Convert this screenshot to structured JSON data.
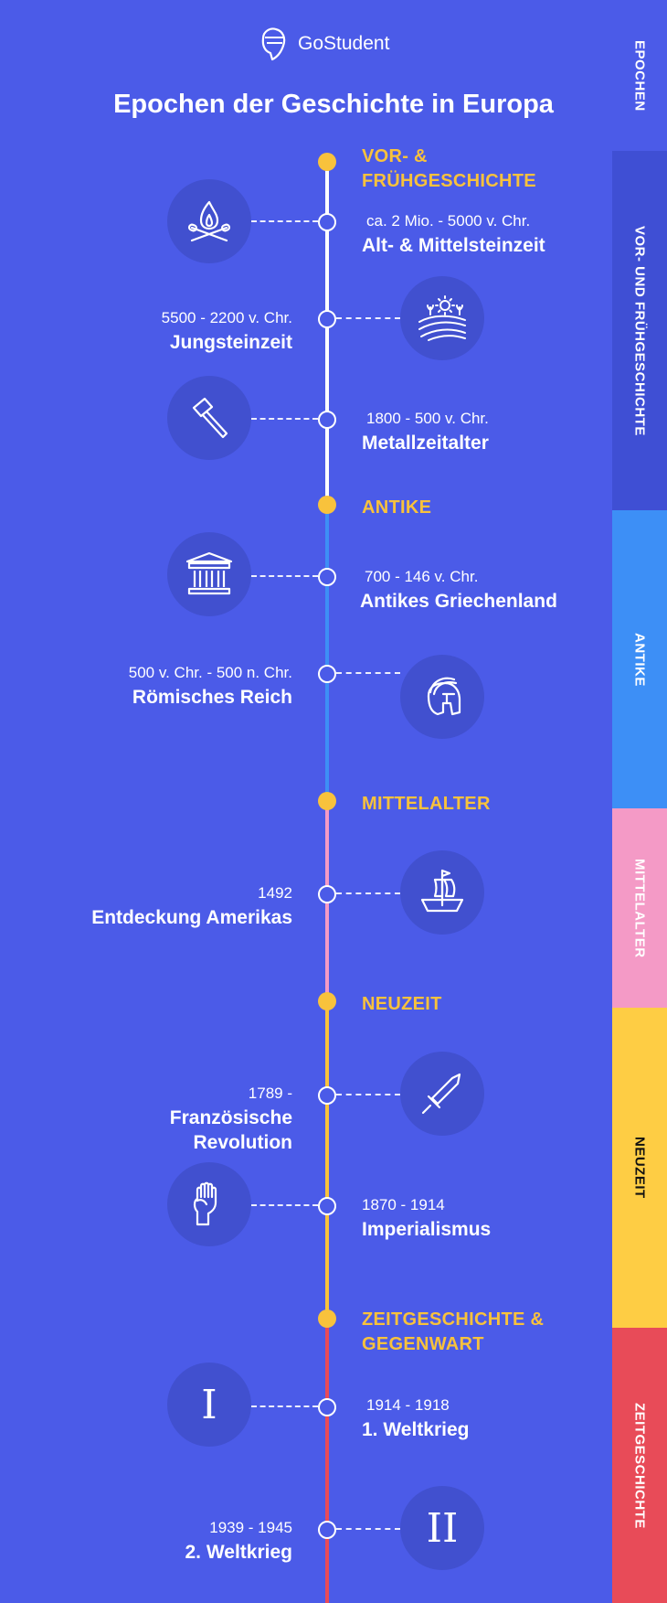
{
  "brand": {
    "name": "GoStudent"
  },
  "title": "Epochen der Geschichte in Europa",
  "sidebar": [
    {
      "label": "EPOCHEN",
      "color": "#4B5BE8",
      "text_color": "#FFFFFF"
    },
    {
      "label": "VOR- UND FRÜHGESCHICHTE",
      "color": "#3F4FD4",
      "text_color": "#FFFFFF"
    },
    {
      "label": "ANTIKE",
      "color": "#3D8FF6",
      "text_color": "#FFFFFF"
    },
    {
      "label": "MITTELALTER",
      "color": "#F49AC6",
      "text_color": "#FFFFFF"
    },
    {
      "label": "NEUZEIT",
      "color": "#FECD44",
      "text_color": "#111111"
    },
    {
      "label": "ZEITGESCHICHTE",
      "color": "#E84B58",
      "text_color": "#FFFFFF"
    }
  ],
  "colors": {
    "epoch_label": "#F8C23C",
    "background": "#4B5BE8",
    "icon_circle": "#4150CF"
  },
  "epochs": [
    {
      "label_line1": "VOR- &",
      "label_line2": "FRÜHGESCHICHTE",
      "line_color": "#FFFFFF"
    },
    {
      "label_line1": "ANTIKE",
      "line_color": "#3D8FF6"
    },
    {
      "label_line1": "MITTELALTER",
      "line_color": "#F49AC6"
    },
    {
      "label_line1": "NEUZEIT",
      "line_color": "#F8C23C"
    },
    {
      "label_line1": "ZEITGESCHICHTE &",
      "label_line2": "GEGENWART",
      "line_color": "#E84B58"
    }
  ],
  "events": [
    {
      "date": "ca. 2 Mio. - 5000 v. Chr.",
      "name": "Alt- & Mittelsteinzeit",
      "icon": "campfire-icon"
    },
    {
      "date": "5500 - 2200 v. Chr.",
      "name": "Jungsteinzeit",
      "icon": "farm-field-icon"
    },
    {
      "date": "1800 - 500 v. Chr.",
      "name": "Metallzeitalter",
      "icon": "hammer-icon"
    },
    {
      "date": "700 - 146 v. Chr.",
      "name": "Antikes Griechenland",
      "icon": "greek-temple-icon"
    },
    {
      "date": "500 v. Chr. - 500 n. Chr.",
      "name": "Römisches Reich",
      "icon": "roman-helmet-icon"
    },
    {
      "date": "1492",
      "name": "Entdeckung Amerikas",
      "icon": "sailing-ship-icon"
    },
    {
      "date": "1789 -",
      "name_line1": "Französische",
      "name_line2": "Revolution",
      "icon": "sword-icon"
    },
    {
      "date": "1870 - 1914",
      "name": "Imperialismus",
      "icon": "raised-fist-icon"
    },
    {
      "date": "1914 - 1918",
      "name": "1. Weltkrieg",
      "icon": "roman-one-icon",
      "glyph": "I"
    },
    {
      "date": "1939 - 1945",
      "name": "2. Weltkrieg",
      "icon": "roman-two-icon",
      "glyph": "II"
    }
  ]
}
